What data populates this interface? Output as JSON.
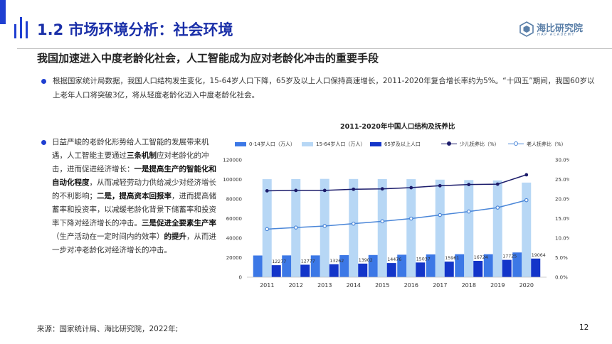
{
  "header": {
    "title": "1.2 市场环境分析：社会环境",
    "logo_name": "海比研究院",
    "logo_sub": "HAP ACADEMY"
  },
  "subtitle": "我国加速进入中度老龄化社会，人工智能成为应对老龄化冲击的重要手段",
  "paragraph1": "根据国家统计局数据，我国人口结构发生变化，15-64岁人口下降，65岁及以上人口保持高速增长，2011-2020年复合增长率约为5%。“十四五”期间，我国60岁以上老年人口将突破3亿，将从轻度老龄化迈入中度老龄化社会。",
  "paragraph2": {
    "t1": "日益严峻的老龄化形势给人工智能的发展带来机遇，人工智能主要通过",
    "b1": "三条机制",
    "t2": "应对老龄化的冲击，进而促进经济增长：",
    "b2": "一是提高生产的智能化和自动化程度",
    "t3": "，从而减轻劳动力供给减少对经济增长的不利影响；",
    "b3": "二是，提高资本回报率",
    "t4": "，进而提高储蓄率和投资率，以减缓老龄化背景下储蓄率和投资率下降对经济增长的冲击。",
    "b4": "三是促进全要素生产率",
    "t5": "（生产活动在一定时间内的效率）",
    "b5": "的提升",
    "t6": "，从而进一步对冲老龄化对经济增长的冲击。"
  },
  "source": "来源：国家统计局、海比研究院，2022年;",
  "page_number": "12",
  "colors": {
    "accent": "#1f3fd1",
    "title_blue": "#1a2fa8",
    "bar_0_14": "#3c78e6",
    "bar_15_64": "#b7d7f5",
    "bar_65": "#1335c9",
    "line_child": "#1c1c6b",
    "line_elder": "#4a86d8",
    "logo": "#5a7fa8"
  },
  "chart_data": {
    "type": "bar",
    "title": "2011-2020年中国人口结构及抚养比",
    "categories": [
      "2011",
      "2012",
      "2013",
      "2014",
      "2015",
      "2016",
      "2017",
      "2018",
      "2019",
      "2020"
    ],
    "y_left": {
      "min": 0,
      "max": 120000,
      "ticks": [
        "0",
        "20000",
        "40000",
        "60000",
        "80000",
        "100000",
        "120000"
      ]
    },
    "y_right": {
      "min": 0,
      "max": 30,
      "ticks": [
        "0.0%",
        "5.0%",
        "10.0%",
        "15.0%",
        "20.0%",
        "25.0%",
        "30.0%"
      ]
    },
    "legend_position": "top",
    "grid": false,
    "series": [
      {
        "name": "0-14岁人口（万人）",
        "kind": "bar",
        "axis": "left",
        "values": [
          22200,
          22300,
          22300,
          22600,
          22700,
          23000,
          23300,
          23500,
          23500,
          25300
        ]
      },
      {
        "name": "15-64岁人口（万人）",
        "kind": "bar",
        "axis": "left",
        "values": [
          100300,
          100400,
          100600,
          100500,
          100400,
          100300,
          99800,
          99400,
          99000,
          96800
        ]
      },
      {
        "name": "65岁及以上人口",
        "kind": "bar",
        "axis": "left",
        "values": [
          12277,
          12777,
          13262,
          13902,
          14476,
          15037,
          15961,
          16724,
          17725,
          19064
        ],
        "labels": [
          "12277",
          "12777",
          "13262",
          "13902",
          "14476",
          "15037",
          "15961",
          "16724",
          "17725",
          "19064"
        ]
      },
      {
        "name": "少儿抚养比（%）",
        "kind": "line",
        "axis": "right",
        "values": [
          22.1,
          22.2,
          22.2,
          22.5,
          22.6,
          22.9,
          23.4,
          23.7,
          23.8,
          26.2
        ]
      },
      {
        "name": "老人抚养比（%）",
        "kind": "line",
        "axis": "right",
        "values": [
          12.3,
          12.7,
          13.1,
          13.7,
          14.3,
          15.0,
          15.9,
          16.8,
          17.8,
          19.7
        ]
      }
    ]
  }
}
